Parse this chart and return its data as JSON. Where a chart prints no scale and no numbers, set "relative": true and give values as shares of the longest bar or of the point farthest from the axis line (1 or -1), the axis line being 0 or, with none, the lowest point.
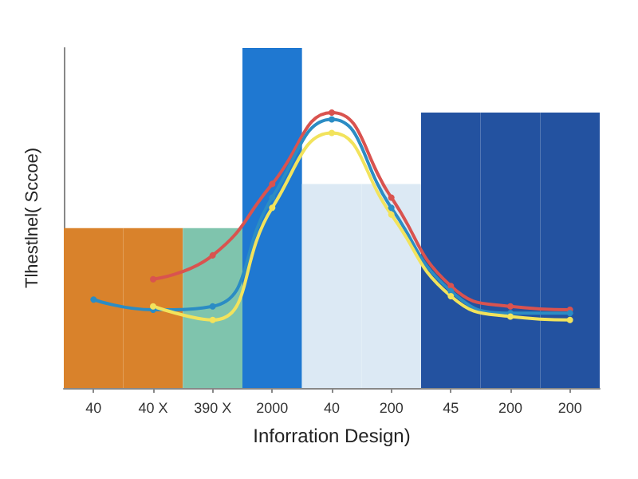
{
  "chart_data": {
    "type": "bar",
    "xlabel": "Inforration Design)",
    "ylabel": "Tlhestlnel( Sccoe)",
    "relative": true,
    "categories": [
      "40",
      "40 X",
      "390 X",
      "2000",
      "40",
      "200",
      "45",
      "200",
      "200"
    ],
    "values": [
      0.47,
      0.47,
      0.47,
      1,
      0.6,
      0.6,
      0.81,
      0.81,
      0.81
    ],
    "colors": [
      "#d9822b",
      "#d9822b",
      "#7fc4ad",
      "#1f78d1",
      "#dce9f4",
      "#dce9f4",
      "#2352a0",
      "#2352a0",
      "#2352a0"
    ],
    "series": [
      {
        "type": "line",
        "color": "#d9534f",
        "values": [
          null,
          0.32,
          0.39,
          0.6,
          0.81,
          0.56,
          0.3,
          0.24,
          0.23
        ]
      },
      {
        "type": "line",
        "color": "#2b8cc4",
        "values": [
          0.26,
          0.23,
          0.24,
          0.56,
          0.79,
          0.53,
          0.285,
          0.22,
          0.22
        ]
      },
      {
        "type": "line",
        "color": "#f2e35c",
        "values": [
          null,
          0.24,
          0.2,
          0.53,
          0.75,
          0.51,
          0.27,
          0.21,
          0.2
        ]
      }
    ],
    "grid": false,
    "marker": "circle"
  }
}
